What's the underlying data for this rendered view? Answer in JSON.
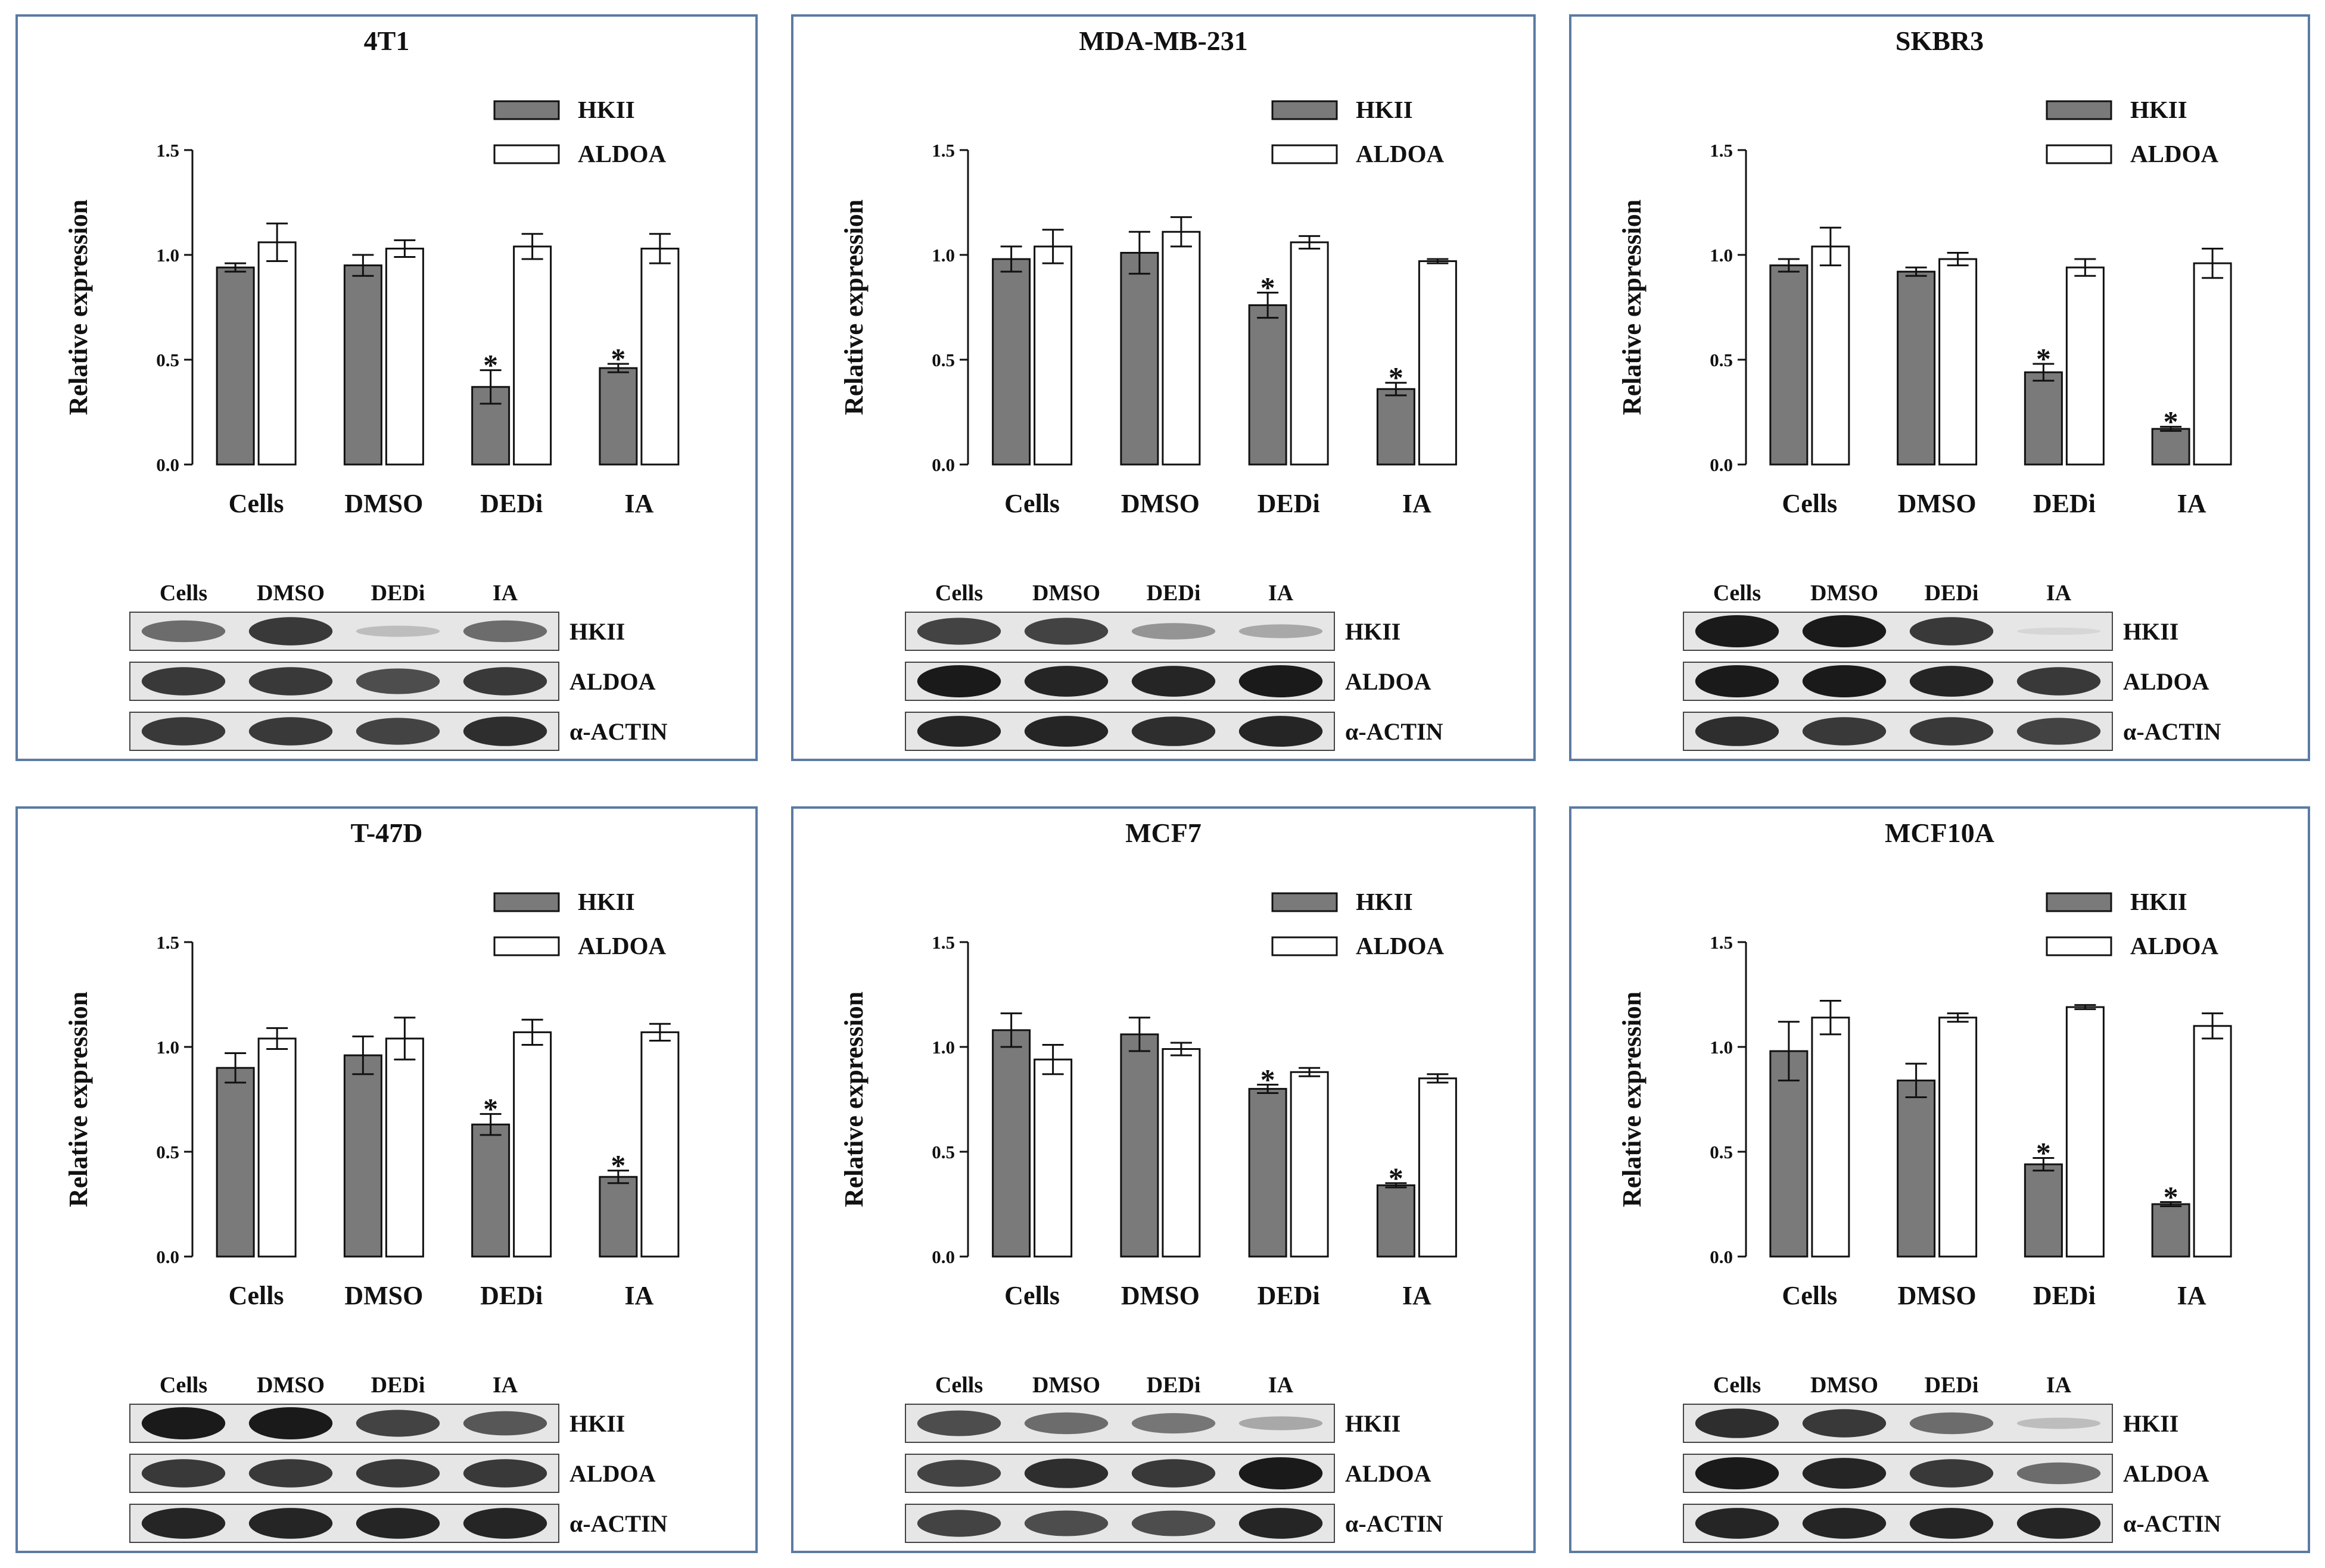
{
  "colors": {
    "hkii": "#7a7a7a",
    "aldoa": "#ffffff",
    "border": "#5b7ba3",
    "band": "#1a1a1a"
  },
  "chart_data": [
    {
      "type": "bar",
      "title": "4T1",
      "ylabel": "Relative expression",
      "ylim": [
        0,
        1.5
      ],
      "yticks": [
        "0.0",
        "0.5",
        "1.0",
        "1.5"
      ],
      "categories": [
        "Cells",
        "DMSO",
        "DEDi",
        "IA"
      ],
      "series": [
        {
          "name": "HKII",
          "values": [
            0.94,
            0.95,
            0.37,
            0.46
          ],
          "errors": [
            0.02,
            0.05,
            0.08,
            0.02
          ]
        },
        {
          "name": "ALDOA",
          "values": [
            1.06,
            1.03,
            1.04,
            1.03
          ],
          "errors": [
            0.09,
            0.04,
            0.06,
            0.07
          ]
        }
      ],
      "significant": [
        "",
        "",
        "*",
        "*"
      ],
      "blot": {
        "lanes": [
          "Cells",
          "DMSO",
          "DEDi",
          "IA"
        ],
        "rows": [
          {
            "name": "HKII",
            "intensity": [
              0.6,
              0.85,
              0.2,
              0.6
            ]
          },
          {
            "name": "ALDOA",
            "intensity": [
              0.85,
              0.85,
              0.75,
              0.85
            ]
          },
          {
            "name": "α-ACTIN",
            "intensity": [
              0.85,
              0.85,
              0.8,
              0.9
            ]
          }
        ]
      }
    },
    {
      "type": "bar",
      "title": "MDA-MB-231",
      "ylabel": "Relative expression",
      "ylim": [
        0,
        1.5
      ],
      "yticks": [
        "0.0",
        "0.5",
        "1.0",
        "1.5"
      ],
      "categories": [
        "Cells",
        "DMSO",
        "DEDi",
        "IA"
      ],
      "series": [
        {
          "name": "HKII",
          "values": [
            0.98,
            1.01,
            0.76,
            0.36
          ],
          "errors": [
            0.06,
            0.1,
            0.06,
            0.03
          ]
        },
        {
          "name": "ALDOA",
          "values": [
            1.04,
            1.11,
            1.06,
            0.97
          ],
          "errors": [
            0.08,
            0.07,
            0.03,
            0.01
          ]
        }
      ],
      "significant": [
        "",
        "",
        "*",
        "*"
      ],
      "blot": {
        "lanes": [
          "Cells",
          "DMSO",
          "DEDi",
          "IA"
        ],
        "rows": [
          {
            "name": "HKII",
            "intensity": [
              0.8,
              0.8,
              0.4,
              0.3
            ]
          },
          {
            "name": "ALDOA",
            "intensity": [
              1.0,
              0.95,
              0.95,
              1.0
            ]
          },
          {
            "name": "α-ACTIN",
            "intensity": [
              0.95,
              0.95,
              0.9,
              0.95
            ]
          }
        ]
      }
    },
    {
      "type": "bar",
      "title": "SKBR3",
      "ylabel": "Relative expression",
      "ylim": [
        0,
        1.5
      ],
      "yticks": [
        "0.0",
        "0.5",
        "1.0",
        "1.5"
      ],
      "categories": [
        "Cells",
        "DMSO",
        "DEDi",
        "IA"
      ],
      "series": [
        {
          "name": "HKII",
          "values": [
            0.95,
            0.92,
            0.44,
            0.17
          ],
          "errors": [
            0.03,
            0.02,
            0.04,
            0.01
          ]
        },
        {
          "name": "ALDOA",
          "values": [
            1.04,
            0.98,
            0.94,
            0.96
          ],
          "errors": [
            0.09,
            0.03,
            0.04,
            0.07
          ]
        }
      ],
      "significant": [
        "",
        "",
        "*",
        "*"
      ],
      "blot": {
        "lanes": [
          "Cells",
          "DMSO",
          "DEDi",
          "IA"
        ],
        "rows": [
          {
            "name": "HKII",
            "intensity": [
              1.0,
              1.0,
              0.85,
              0.05
            ]
          },
          {
            "name": "ALDOA",
            "intensity": [
              1.0,
              1.0,
              0.95,
              0.85
            ]
          },
          {
            "name": "α-ACTIN",
            "intensity": [
              0.9,
              0.85,
              0.85,
              0.8
            ]
          }
        ]
      }
    },
    {
      "type": "bar",
      "title": "T-47D",
      "ylabel": "Relative expression",
      "ylim": [
        0,
        1.5
      ],
      "yticks": [
        "0.0",
        "0.5",
        "1.0",
        "1.5"
      ],
      "categories": [
        "Cells",
        "DMSO",
        "DEDi",
        "IA"
      ],
      "series": [
        {
          "name": "HKII",
          "values": [
            0.9,
            0.96,
            0.63,
            0.38
          ],
          "errors": [
            0.07,
            0.09,
            0.05,
            0.03
          ]
        },
        {
          "name": "ALDOA",
          "values": [
            1.04,
            1.04,
            1.07,
            1.07
          ],
          "errors": [
            0.05,
            0.1,
            0.06,
            0.04
          ]
        }
      ],
      "significant": [
        "",
        "",
        "*",
        "*"
      ],
      "blot": {
        "lanes": [
          "Cells",
          "DMSO",
          "DEDi",
          "IA"
        ],
        "rows": [
          {
            "name": "HKII",
            "intensity": [
              1.0,
              1.0,
              0.8,
              0.7
            ]
          },
          {
            "name": "ALDOA",
            "intensity": [
              0.85,
              0.85,
              0.85,
              0.85
            ]
          },
          {
            "name": "α-ACTIN",
            "intensity": [
              0.95,
              0.95,
              0.95,
              0.95
            ]
          }
        ]
      }
    },
    {
      "type": "bar",
      "title": "MCF7",
      "ylabel": "Relative expression",
      "ylim": [
        0,
        1.5
      ],
      "yticks": [
        "0.0",
        "0.5",
        "1.0",
        "1.5"
      ],
      "categories": [
        "Cells",
        "DMSO",
        "DEDi",
        "IA"
      ],
      "series": [
        {
          "name": "HKII",
          "values": [
            1.08,
            1.06,
            0.8,
            0.34
          ],
          "errors": [
            0.08,
            0.08,
            0.02,
            0.01
          ]
        },
        {
          "name": "ALDOA",
          "values": [
            0.94,
            0.99,
            0.88,
            0.85
          ],
          "errors": [
            0.07,
            0.03,
            0.02,
            0.02
          ]
        }
      ],
      "significant": [
        "",
        "",
        "*",
        "*"
      ],
      "blot": {
        "lanes": [
          "Cells",
          "DMSO",
          "DEDi",
          "IA"
        ],
        "rows": [
          {
            "name": "HKII",
            "intensity": [
              0.75,
              0.6,
              0.55,
              0.3
            ]
          },
          {
            "name": "ALDOA",
            "intensity": [
              0.8,
              0.9,
              0.85,
              1.0
            ]
          },
          {
            "name": "α-ACTIN",
            "intensity": [
              0.8,
              0.75,
              0.75,
              0.95
            ]
          }
        ]
      }
    },
    {
      "type": "bar",
      "title": "MCF10A",
      "ylabel": "Relative expression",
      "ylim": [
        0,
        1.5
      ],
      "yticks": [
        "0.0",
        "0.5",
        "1.0",
        "1.5"
      ],
      "categories": [
        "Cells",
        "DMSO",
        "DEDi",
        "IA"
      ],
      "series": [
        {
          "name": "HKII",
          "values": [
            0.98,
            0.84,
            0.44,
            0.25
          ],
          "errors": [
            0.14,
            0.08,
            0.03,
            0.01
          ]
        },
        {
          "name": "ALDOA",
          "values": [
            1.14,
            1.14,
            1.19,
            1.1
          ],
          "errors": [
            0.08,
            0.02,
            0.01,
            0.06
          ]
        }
      ],
      "significant": [
        "",
        "",
        "*",
        "*"
      ],
      "blot": {
        "lanes": [
          "Cells",
          "DMSO",
          "DEDi",
          "IA"
        ],
        "rows": [
          {
            "name": "HKII",
            "intensity": [
              0.9,
              0.85,
              0.6,
              0.2
            ]
          },
          {
            "name": "ALDOA",
            "intensity": [
              1.0,
              0.95,
              0.85,
              0.6
            ]
          },
          {
            "name": "α-ACTIN",
            "intensity": [
              0.95,
              0.95,
              0.95,
              0.95
            ]
          }
        ]
      }
    }
  ]
}
